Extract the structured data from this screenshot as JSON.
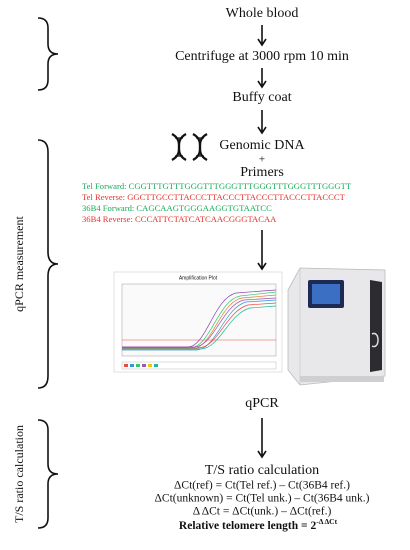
{
  "steps": [
    "Whole blood",
    "Centrifuge at 3000 rpm 10 min",
    "Buffy coat",
    "Genomic DNA",
    "+",
    "Primers"
  ],
  "primers": [
    {
      "label": "Tel Forward: CGGTTTGTTTGGGTTTGGGTTTGGGTTTGGGTTTGGGTT",
      "color": "#1aaa5a"
    },
    {
      "label": "Tel Reverse: GGCTTGCCTTACCCTTACCCTTACCCTTACCCTTACCCT",
      "color": "#e8322b"
    },
    {
      "label": "36B4 Forward: CAGCAAGTGGGAAGGTGTAATCC",
      "color": "#1aaa5a"
    },
    {
      "label": "36B4 Reverse: CCCATTCTATCATCAACGGGTACAA",
      "color": "#e8322b"
    }
  ],
  "plot_title": "Amplification Plot",
  "qpcr": "qPCR",
  "calc_title": "T/S ratio calculation",
  "formulas": [
    "ΔCt(ref) = Ct(Tel ref.) – Ct(36B4 ref.)",
    "ΔCt(unknown) = Ct(Tel unk.) – Ct(36B4 unk.)",
    "Δ ΔCt = ΔCt(unk.) – ΔCt(ref.)"
  ],
  "result": {
    "label": "Relative telomere length = 2",
    "exponent": "-Δ ΔCt"
  },
  "side_labels": [
    "qPCR measurement",
    "T/S ratio calculation"
  ]
}
